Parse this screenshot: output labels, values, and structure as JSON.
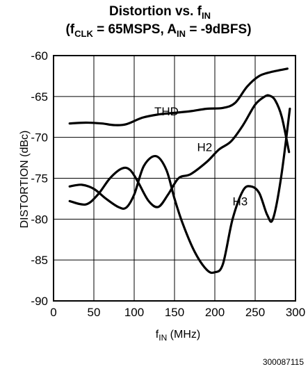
{
  "chart_data": {
    "type": "line",
    "title": {
      "line1": {
        "main": "Distortion vs. f",
        "sub": "IN"
      },
      "line2": {
        "open": "(f",
        "clk_sub": "CLK",
        "mid": " = 65MSPS, A",
        "ain_sub": "IN",
        "end": " = -9dBFS)"
      }
    },
    "xlabel": {
      "main": "f",
      "sub": "IN",
      "unit": " (MHz)"
    },
    "ylabel": "DISTORTION (dBc)",
    "xlim": [
      0,
      300
    ],
    "ylim": [
      -90,
      -60
    ],
    "xticks": [
      "0",
      "50",
      "100",
      "150",
      "200",
      "250",
      "300"
    ],
    "yticks": [
      "-60",
      "-65",
      "-70",
      "-75",
      "-80",
      "-85",
      "-90"
    ],
    "grid": true,
    "figure_id": "300087115",
    "series": [
      {
        "name": "THD",
        "x": [
          20,
          40,
          60,
          75,
          90,
          110,
          130,
          150,
          170,
          190,
          210,
          225,
          240,
          255,
          270,
          290
        ],
        "values": [
          -68.3,
          -68.2,
          -68.3,
          -68.5,
          -68.4,
          -67.6,
          -67.2,
          -67.0,
          -66.8,
          -66.5,
          -66.4,
          -65.8,
          -63.8,
          -62.5,
          -62.0,
          -61.6
        ]
      },
      {
        "name": "H2",
        "x": [
          20,
          40,
          55,
          70,
          85,
          95,
          105,
          118,
          130,
          142,
          155,
          170,
          190,
          205,
          220,
          235,
          250,
          262,
          268,
          275,
          283,
          292
        ],
        "values": [
          -77.8,
          -78.2,
          -77.0,
          -75.0,
          -73.8,
          -74.0,
          -75.5,
          -77.8,
          -78.5,
          -77.0,
          -75.0,
          -74.5,
          -73.0,
          -71.5,
          -70.5,
          -68.5,
          -66.0,
          -65.0,
          -64.9,
          -65.5,
          -67.5,
          -71.8
        ]
      },
      {
        "name": "H3",
        "x": [
          20,
          35,
          50,
          65,
          80,
          90,
          100,
          112,
          127,
          140,
          150,
          160,
          175,
          190,
          200,
          210,
          222,
          235,
          245,
          255,
          265,
          272,
          282,
          293
        ],
        "values": [
          -76.0,
          -75.8,
          -76.3,
          -77.5,
          -78.5,
          -78.6,
          -77.0,
          -73.5,
          -72.3,
          -74.0,
          -77.5,
          -80.5,
          -84.0,
          -86.2,
          -86.5,
          -85.5,
          -80.0,
          -76.5,
          -76.0,
          -76.8,
          -79.5,
          -80.0,
          -75.0,
          -66.5
        ]
      }
    ]
  }
}
